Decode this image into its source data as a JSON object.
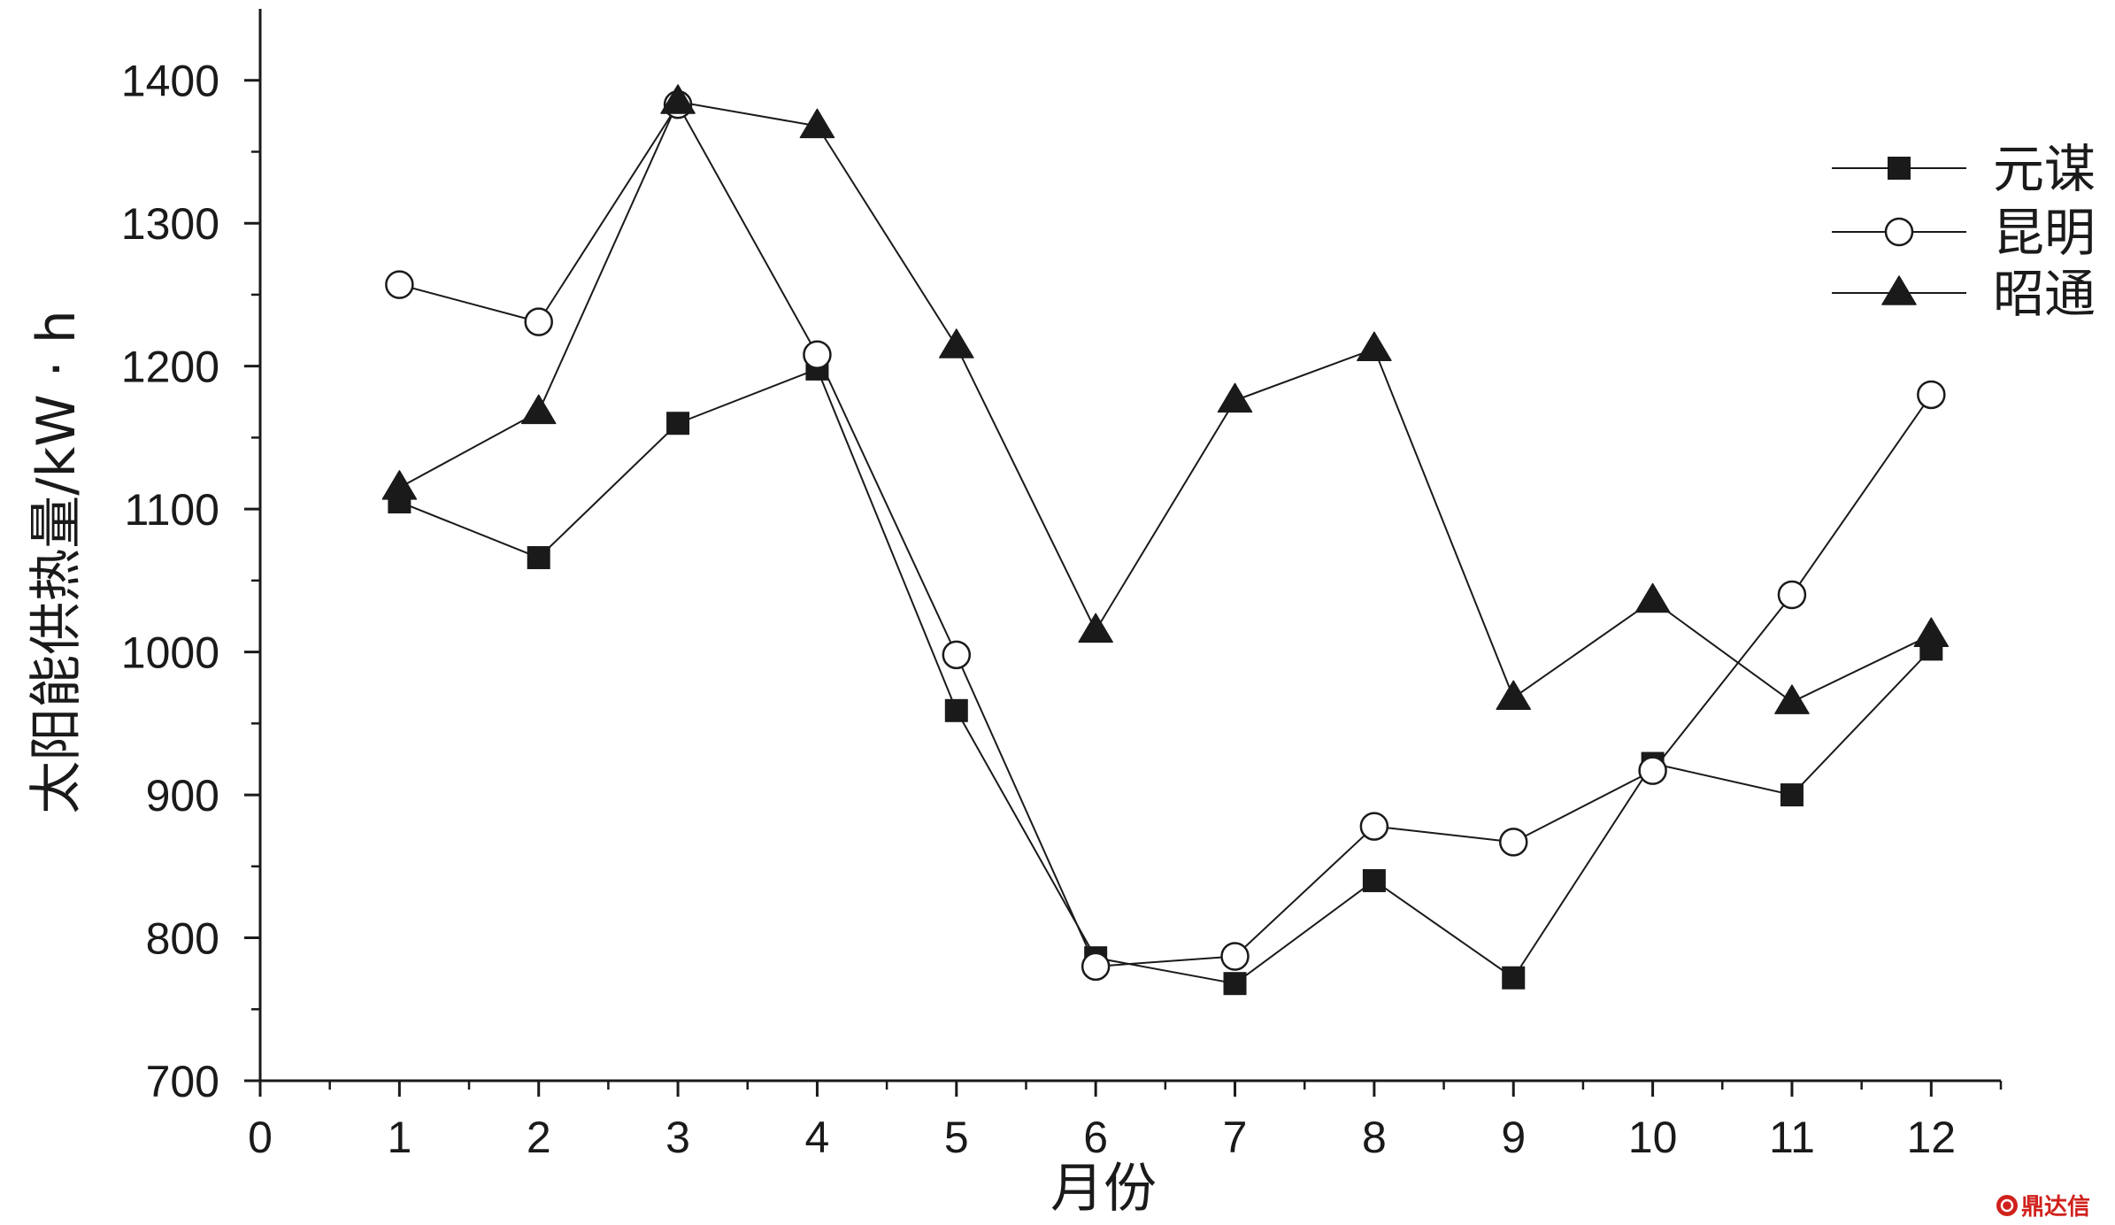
{
  "chart_data": {
    "type": "line",
    "x": [
      1,
      2,
      3,
      4,
      5,
      6,
      7,
      8,
      9,
      10,
      11,
      12
    ],
    "series": [
      {
        "name": "元谋",
        "marker": "filled-square",
        "color": "#1a1a1a",
        "values": [
          1105,
          1066,
          1160,
          1198,
          959,
          786,
          768,
          840,
          772,
          922,
          900,
          1002
        ]
      },
      {
        "name": "昆明",
        "marker": "hollow-circle",
        "color": "#1a1a1a",
        "values": [
          1257,
          1231,
          1383,
          1208,
          998,
          780,
          787,
          878,
          867,
          917,
          1040,
          1180
        ]
      },
      {
        "name": "昭通",
        "marker": "filled-triangle",
        "color": "#1a1a1a",
        "values": [
          1115,
          1168,
          1385,
          1368,
          1214,
          1015,
          1176,
          1212,
          968,
          1036,
          965,
          1012
        ]
      }
    ],
    "xlabel": "月份",
    "ylabel": "太阳能供热量/kW · h",
    "xlim": [
      0,
      12.5
    ],
    "ylim": [
      700,
      1450
    ],
    "xticks": [
      0,
      1,
      2,
      3,
      4,
      5,
      6,
      7,
      8,
      9,
      10,
      11,
      12
    ],
    "yticks": [
      700,
      800,
      900,
      1000,
      1100,
      1200,
      1300,
      1400
    ],
    "grid": false,
    "legend": "top-right"
  },
  "watermark": {
    "text": "鼎达信",
    "color": "#d0211c"
  }
}
